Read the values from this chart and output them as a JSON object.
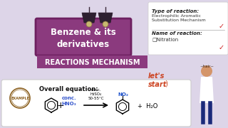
{
  "bg_color": "#ddd5e8",
  "title_box_color": "#8b3a7e",
  "title_box_color2": "#6d2060",
  "title_text": "Benzene & its\nderivatives",
  "subtitle_text": "REACTIONS MECHANISM",
  "subtitle_bg": "#8b3a7e",
  "right_box_bg": "#ffffff",
  "right_title1": "Type of reaction:",
  "right_body1": "Electrophilic Aromatic\nSubstitution Mechanism",
  "right_title2": "Name of reaction:",
  "right_body2": "□Nitration",
  "lets_start": "let's\nstart",
  "bottom_box_bg": "#ffffff",
  "overall_eq": "Overall equation:",
  "reagent1": "conc.\nHNO₃",
  "reagent2": "conc.\nH₂SO₄\n50-55°C",
  "product": "NO₂",
  "water": "+ H₂O",
  "lamp_color": "#4a3a4a",
  "lamp_shade_color": "#2d2030"
}
